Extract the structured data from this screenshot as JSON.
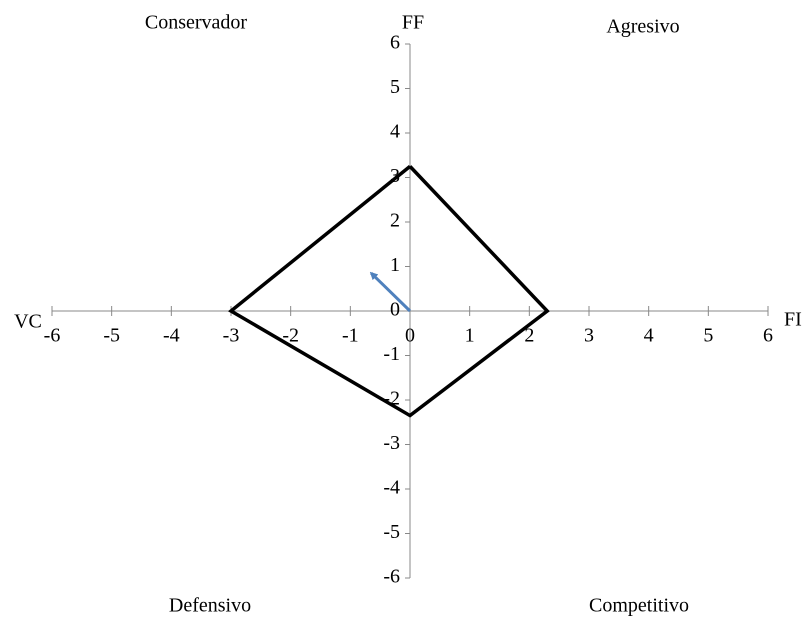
{
  "chart_data": {
    "type": "line",
    "quadrants": [
      "Conservador",
      "Agresivo",
      "Defensivo",
      "Competitivo"
    ],
    "axis_labels": {
      "top": "FF",
      "right": "FI",
      "left": "VC"
    },
    "xlim": [
      -6,
      6
    ],
    "ylim": [
      -6,
      6
    ],
    "xticks": [
      -6,
      -5,
      -4,
      -3,
      -2,
      -1,
      0,
      1,
      2,
      3,
      4,
      5,
      6
    ],
    "yticks": [
      -6,
      -5,
      -4,
      -3,
      -2,
      -1,
      0,
      1,
      2,
      3,
      4,
      5,
      6
    ],
    "series": [
      {
        "color": "#000000",
        "x": [
          0,
          2.3,
          0,
          -3,
          0
        ],
        "y": [
          3.25,
          0,
          -2.35,
          0,
          3.25
        ]
      },
      {
        "color": "#4f81bd",
        "x": [
          0,
          -0.65
        ],
        "y": [
          0,
          0.85
        ],
        "arrow": true
      }
    ]
  }
}
